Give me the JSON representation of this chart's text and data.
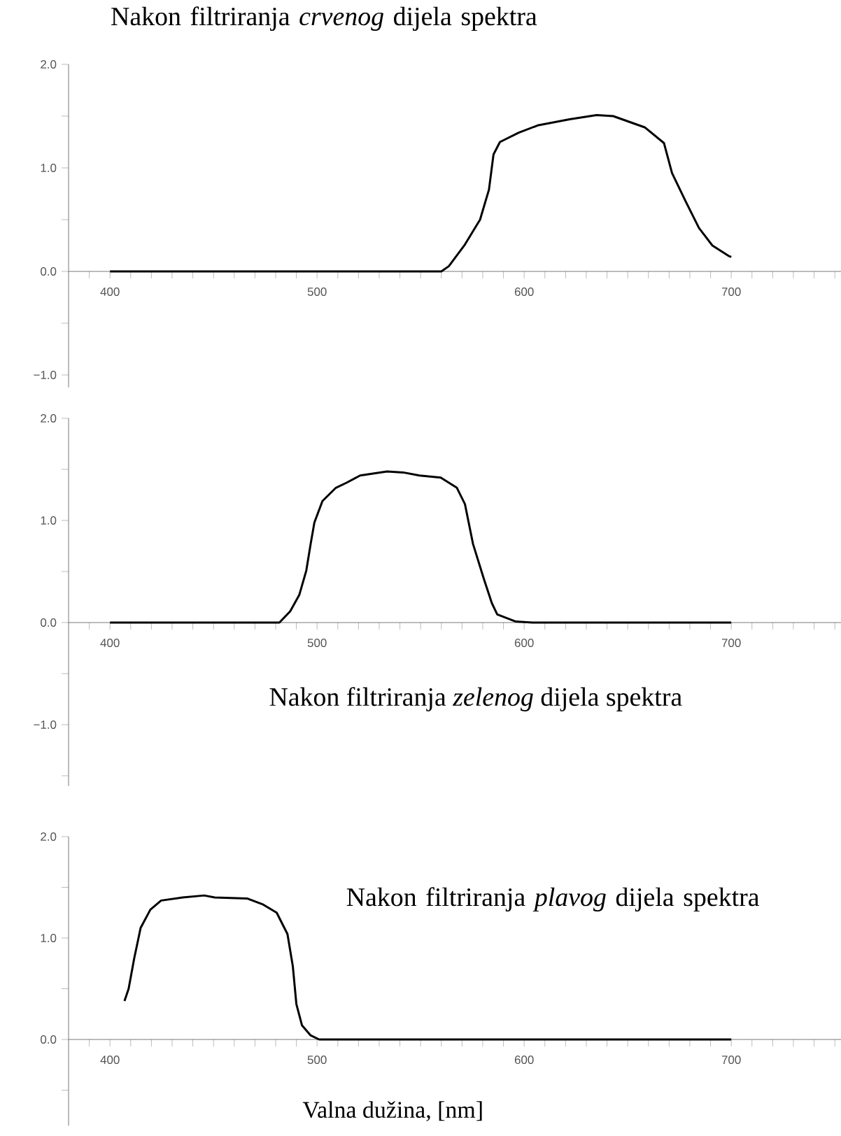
{
  "chart_data": [
    {
      "type": "line",
      "color": "#000000",
      "x": [
        400,
        450,
        500,
        540,
        560,
        563.6,
        571.4,
        578.7,
        583,
        585.2,
        588.3,
        597.4,
        606.5,
        622,
        635,
        643,
        658.4,
        667.5,
        671.4,
        677.9,
        684.4,
        690.9,
        698.7,
        700
      ],
      "values": [
        0,
        0,
        0,
        0,
        0,
        0.05,
        0.26,
        0.5,
        0.79,
        1.13,
        1.25,
        1.34,
        1.41,
        1.47,
        1.51,
        1.5,
        1.39,
        1.24,
        0.95,
        0.68,
        0.42,
        0.25,
        0.15,
        0.14
      ],
      "xlim": [
        380,
        753
      ],
      "ylim": [
        -1.12,
        2.0
      ],
      "xticks": [
        {
          "value": 390,
          "label": null
        },
        400,
        {
          "value": 410,
          "label": null
        },
        {
          "value": 420,
          "label": null
        },
        {
          "value": 430,
          "label": null
        },
        {
          "value": 440,
          "label": null
        },
        {
          "value": 450,
          "label": null
        },
        {
          "value": 460,
          "label": null
        },
        {
          "value": 470,
          "label": null
        },
        {
          "value": 480,
          "label": null
        },
        {
          "value": 490,
          "label": null
        },
        500,
        {
          "value": 510,
          "label": null
        },
        {
          "value": 520,
          "label": null
        },
        {
          "value": 530,
          "label": null
        },
        {
          "value": 540,
          "label": null
        },
        {
          "value": 550,
          "label": null
        },
        {
          "value": 560,
          "label": null
        },
        {
          "value": 570,
          "label": null
        },
        {
          "value": 580,
          "label": null
        },
        {
          "value": 590,
          "label": null
        },
        600,
        {
          "value": 610,
          "label": null
        },
        {
          "value": 620,
          "label": null
        },
        {
          "value": 630,
          "label": null
        },
        {
          "value": 640,
          "label": null
        },
        {
          "value": 650,
          "label": null
        },
        {
          "value": 660,
          "label": null
        },
        {
          "value": 670,
          "label": null
        },
        {
          "value": 680,
          "label": null
        },
        {
          "value": 690,
          "label": null
        },
        700,
        {
          "value": 710,
          "label": null
        },
        {
          "value": 720,
          "label": null
        },
        {
          "value": 730,
          "label": null
        },
        {
          "value": 740,
          "label": null
        },
        {
          "value": 750,
          "label": null
        }
      ],
      "yticks": [
        {
          "value": 2,
          "label": "2.0"
        },
        {
          "value": 1.5,
          "label": null
        },
        {
          "value": 1,
          "label": "1.0"
        },
        {
          "value": 0.5,
          "label": null
        },
        {
          "value": 0,
          "label": "0.0"
        },
        {
          "value": -0.5,
          "label": null
        },
        {
          "value": -1,
          "label": "−1.0"
        }
      ],
      "annotations": [
        "Nakon filtriranja *crvenog* dijela spektra"
      ]
    },
    {
      "type": "line",
      "color": "#000000",
      "x": [
        400,
        440,
        481.8,
        487,
        491.4,
        494.8,
        496.9,
        498.7,
        502.6,
        509.1,
        514.3,
        520.8,
        533.8,
        541.6,
        549.4,
        559.7,
        567.5,
        571.4,
        575.3,
        580.5,
        584.4,
        587,
        596,
        604,
        650,
        700
      ],
      "values": [
        0,
        0,
        0,
        0.11,
        0.27,
        0.51,
        0.77,
        0.98,
        1.19,
        1.32,
        1.37,
        1.44,
        1.48,
        1.47,
        1.44,
        1.42,
        1.32,
        1.16,
        0.77,
        0.43,
        0.19,
        0.08,
        0.01,
        0,
        0,
        0
      ],
      "xlim": [
        380,
        753
      ],
      "ylim": [
        -1.6,
        2.0
      ],
      "xticks": [
        {
          "value": 390,
          "label": null
        },
        400,
        {
          "value": 410,
          "label": null
        },
        {
          "value": 420,
          "label": null
        },
        {
          "value": 430,
          "label": null
        },
        {
          "value": 440,
          "label": null
        },
        {
          "value": 450,
          "label": null
        },
        {
          "value": 460,
          "label": null
        },
        {
          "value": 470,
          "label": null
        },
        {
          "value": 480,
          "label": null
        },
        {
          "value": 490,
          "label": null
        },
        500,
        {
          "value": 510,
          "label": null
        },
        {
          "value": 520,
          "label": null
        },
        {
          "value": 530,
          "label": null
        },
        {
          "value": 540,
          "label": null
        },
        {
          "value": 550,
          "label": null
        },
        {
          "value": 560,
          "label": null
        },
        {
          "value": 570,
          "label": null
        },
        {
          "value": 580,
          "label": null
        },
        {
          "value": 590,
          "label": null
        },
        600,
        {
          "value": 610,
          "label": null
        },
        {
          "value": 620,
          "label": null
        },
        {
          "value": 630,
          "label": null
        },
        {
          "value": 640,
          "label": null
        },
        {
          "value": 650,
          "label": null
        },
        {
          "value": 660,
          "label": null
        },
        {
          "value": 670,
          "label": null
        },
        {
          "value": 680,
          "label": null
        },
        {
          "value": 690,
          "label": null
        },
        700,
        {
          "value": 710,
          "label": null
        },
        {
          "value": 720,
          "label": null
        },
        {
          "value": 730,
          "label": null
        },
        {
          "value": 740,
          "label": null
        },
        {
          "value": 750,
          "label": null
        }
      ],
      "yticks": [
        {
          "value": 2,
          "label": "2.0"
        },
        {
          "value": 1.5,
          "label": null
        },
        {
          "value": 1,
          "label": "1.0"
        },
        {
          "value": 0.5,
          "label": null
        },
        {
          "value": 0,
          "label": "0.0"
        },
        {
          "value": -0.5,
          "label": null
        },
        {
          "value": -1,
          "label": "−1.0"
        },
        {
          "value": -1.5,
          "label": null
        }
      ],
      "annotations": [
        "Nakon filtriranja *zelenog* dijela spektra"
      ]
    },
    {
      "type": "line",
      "color": "#000000",
      "x": [
        407,
        409,
        411.7,
        414.8,
        419.5,
        424.7,
        435,
        445.5,
        450.6,
        466.2,
        474,
        480.5,
        485.7,
        488.3,
        490,
        492.7,
        496.9,
        501,
        550,
        600,
        650,
        700
      ],
      "values": [
        0.38,
        0.5,
        0.8,
        1.1,
        1.28,
        1.37,
        1.4,
        1.42,
        1.4,
        1.39,
        1.33,
        1.25,
        1.04,
        0.72,
        0.35,
        0.14,
        0.04,
        0,
        0,
        0,
        0,
        0
      ],
      "xlim": [
        380,
        753
      ],
      "ylim": [
        -0.85,
        2.0
      ],
      "xlabel": "Valna dužina, [nm]",
      "xticks": [
        {
          "value": 390,
          "label": null
        },
        400,
        {
          "value": 410,
          "label": null
        },
        {
          "value": 420,
          "label": null
        },
        {
          "value": 430,
          "label": null
        },
        {
          "value": 440,
          "label": null
        },
        {
          "value": 450,
          "label": null
        },
        {
          "value": 460,
          "label": null
        },
        {
          "value": 470,
          "label": null
        },
        {
          "value": 480,
          "label": null
        },
        {
          "value": 490,
          "label": null
        },
        500,
        {
          "value": 510,
          "label": null
        },
        {
          "value": 520,
          "label": null
        },
        {
          "value": 530,
          "label": null
        },
        {
          "value": 540,
          "label": null
        },
        {
          "value": 550,
          "label": null
        },
        {
          "value": 560,
          "label": null
        },
        {
          "value": 570,
          "label": null
        },
        {
          "value": 580,
          "label": null
        },
        {
          "value": 590,
          "label": null
        },
        600,
        {
          "value": 610,
          "label": null
        },
        {
          "value": 620,
          "label": null
        },
        {
          "value": 630,
          "label": null
        },
        {
          "value": 640,
          "label": null
        },
        {
          "value": 650,
          "label": null
        },
        {
          "value": 660,
          "label": null
        },
        {
          "value": 670,
          "label": null
        },
        {
          "value": 680,
          "label": null
        },
        {
          "value": 690,
          "label": null
        },
        700,
        {
          "value": 710,
          "label": null
        },
        {
          "value": 720,
          "label": null
        },
        {
          "value": 730,
          "label": null
        },
        {
          "value": 740,
          "label": null
        },
        {
          "value": 750,
          "label": null
        }
      ],
      "yticks": [
        {
          "value": 2,
          "label": "2.0"
        },
        {
          "value": 1.5,
          "label": null
        },
        {
          "value": 1,
          "label": "1.0"
        },
        {
          "value": 0.5,
          "label": null
        },
        {
          "value": 0,
          "label": "0.0"
        },
        {
          "value": -0.5,
          "label": null
        }
      ],
      "annotations": [
        "Nakon filtriranja *plavog* dijela spektra"
      ]
    }
  ]
}
